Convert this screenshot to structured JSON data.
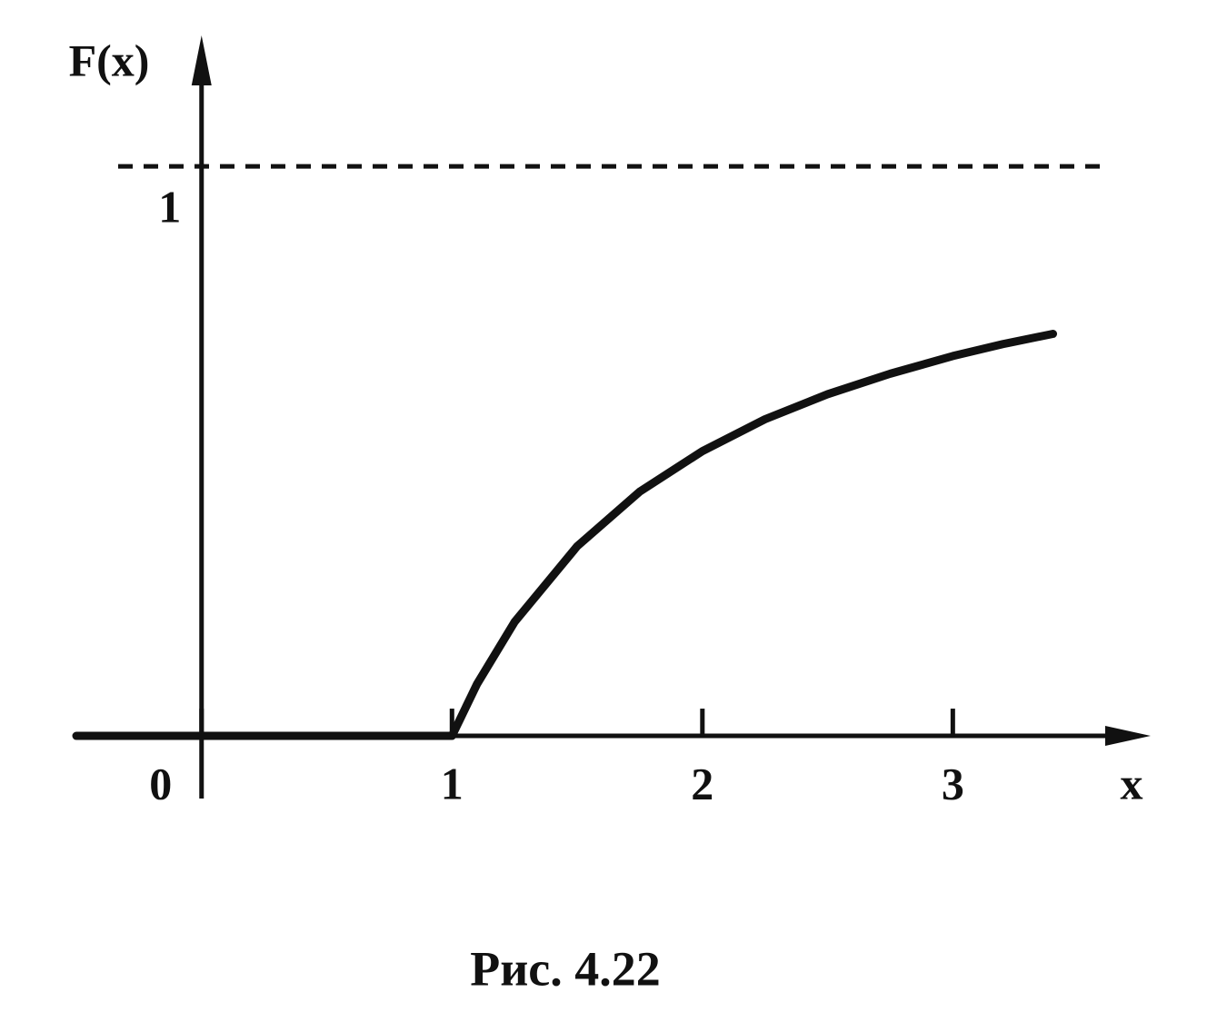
{
  "chart_data": {
    "type": "line",
    "title": "Рис. 4.22",
    "x_label": "x",
    "y_label": "F(x)",
    "series": [
      {
        "color": "#111111",
        "x": [
          -0.5,
          1,
          1.1,
          1.25,
          1.5,
          1.75,
          2,
          2.25,
          2.5,
          2.75,
          3,
          3.2,
          3.4
        ],
        "values": [
          0,
          0,
          0.091,
          0.2,
          0.333,
          0.429,
          0.5,
          0.556,
          0.6,
          0.636,
          0.667,
          0.688,
          0.706
        ]
      }
    ],
    "xlim": [
      -0.5,
      3.79
    ],
    "ylim": [
      -0.11,
      1.23
    ],
    "xticks": [
      0,
      1,
      2,
      3
    ],
    "yticks": [
      1
    ],
    "grid": true
  }
}
